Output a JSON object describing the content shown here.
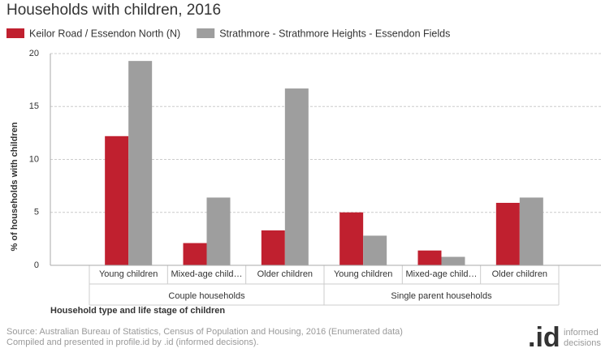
{
  "chart_data": {
    "type": "bar",
    "title": "Households with children, 2016",
    "y_label": "% of households with children",
    "x_label": "Household type and life stage of children",
    "categories": [
      "Young children",
      "Mixed-age child…",
      "Older children",
      "Young children",
      "Mixed-age child…",
      "Older children"
    ],
    "groups": [
      "Couple households",
      "Single parent households"
    ],
    "series": [
      {
        "name": "Keilor Road / Essendon North (N)",
        "color": "#c0202f",
        "values": [
          12.2,
          2.1,
          3.3,
          5.0,
          1.4,
          5.9
        ]
      },
      {
        "name": "Strathmore - Strathmore Heights - Essendon Fields",
        "color": "#9e9e9e",
        "values": [
          19.3,
          6.4,
          16.7,
          2.8,
          0.8,
          6.4
        ]
      }
    ],
    "ylim": [
      0,
      20
    ],
    "yticks": [
      0,
      5,
      10,
      15,
      20
    ],
    "grid": true,
    "legend": "top-left"
  },
  "footer": {
    "source": [
      "Source: Australian Bureau of Statistics, Census of Population and Housing, 2016 (Enumerated data)",
      "Compiled and presented in profile.id by .id (informed decisions)."
    ],
    "logo": {
      "mark": ".id",
      "text": [
        "informed",
        "decisions"
      ]
    }
  }
}
